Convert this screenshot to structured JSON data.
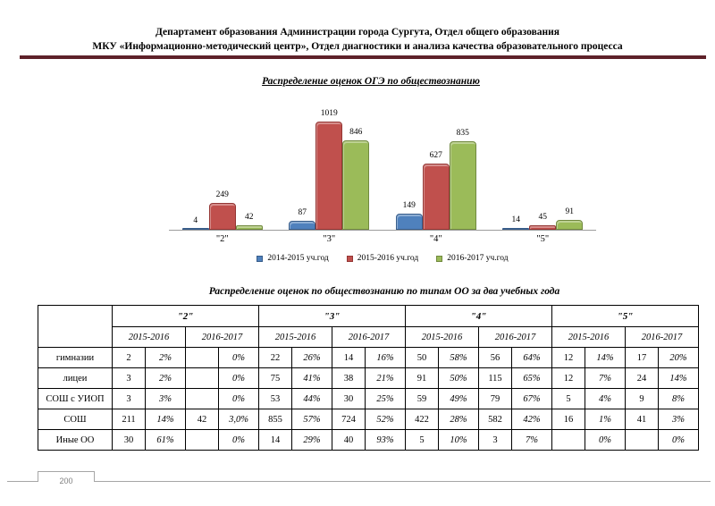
{
  "header": {
    "line1": "Департамент образования Администрации города Сургута, Отдел общего образования",
    "line2": "МКУ «Информационно-методический центр», Отдел диагностики и анализа качества образовательного процесса"
  },
  "colors": {
    "accent_rule": "#5e2129",
    "axis_line": "#9d9d9d",
    "footer_line": "#a6a6a6",
    "page_number_text": "#7f7f7f"
  },
  "chart_data": {
    "type": "bar",
    "title": "Распределение оценок ОГЭ по обществознанию",
    "categories": [
      "\"2\"",
      "\"3\"",
      "\"4\"",
      "\"5\""
    ],
    "series": [
      {
        "name": "2014-2015 уч.год",
        "color": "#4f81bd",
        "border": "#385d8a",
        "values": [
          4,
          87,
          149,
          14
        ]
      },
      {
        "name": "2015-2016 уч.год",
        "color": "#c0504d",
        "border": "#943634",
        "values": [
          249,
          1019,
          627,
          45
        ]
      },
      {
        "name": "2016-2017 уч.год",
        "color": "#9bbb59",
        "border": "#71893f",
        "values": [
          42,
          846,
          835,
          91
        ]
      }
    ],
    "ylim": [
      0,
      1100
    ],
    "grid": false,
    "legend_position": "bottom",
    "data_labels": true
  },
  "table": {
    "title": "Распределение оценок по обществознанию по типам ОО за два учебных года",
    "grade_headers": [
      "\"2\"",
      "\"3\"",
      "\"4\"",
      "\"5\""
    ],
    "year_headers": [
      "2015-2016",
      "2016-2017"
    ],
    "rows": [
      {
        "label": "гимназии",
        "cells": [
          "2",
          "2%",
          "",
          "0%",
          "22",
          "26%",
          "14",
          "16%",
          "50",
          "58%",
          "56",
          "64%",
          "12",
          "14%",
          "17",
          "20%"
        ]
      },
      {
        "label": "лицеи",
        "cells": [
          "3",
          "2%",
          "",
          "0%",
          "75",
          "41%",
          "38",
          "21%",
          "91",
          "50%",
          "115",
          "65%",
          "12",
          "7%",
          "24",
          "14%"
        ]
      },
      {
        "label": "СОШ с УИОП",
        "cells": [
          "3",
          "3%",
          "",
          "0%",
          "53",
          "44%",
          "30",
          "25%",
          "59",
          "49%",
          "79",
          "67%",
          "5",
          "4%",
          "9",
          "8%"
        ]
      },
      {
        "label": "СОШ",
        "cells": [
          "211",
          "14%",
          "42",
          "3,0%",
          "855",
          "57%",
          "724",
          "52%",
          "422",
          "28%",
          "582",
          "42%",
          "16",
          "1%",
          "41",
          "3%"
        ]
      },
      {
        "label": "Иные ОО",
        "cells": [
          "30",
          "61%",
          "",
          "0%",
          "14",
          "29%",
          "40",
          "93%",
          "5",
          "10%",
          "3",
          "7%",
          "",
          "0%",
          "",
          "0%"
        ]
      }
    ]
  },
  "footer": {
    "page_number": "200"
  }
}
